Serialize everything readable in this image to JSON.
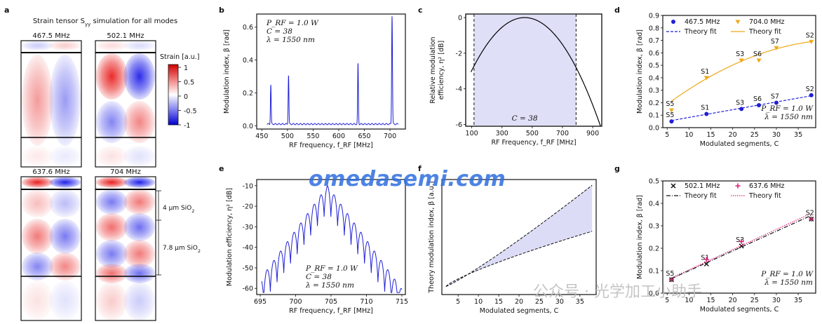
{
  "panel_letters": [
    "a",
    "b",
    "c",
    "d",
    "e",
    "f",
    "g"
  ],
  "panel_a": {
    "title": "Strain tensor S",
    "title_sub": "yy",
    "title_rest": " simulation for all modes",
    "modes": [
      "467.5 MHz",
      "502.1 MHz",
      "637.6 MHz",
      "704 MHz"
    ],
    "colorbar_label": "Strain [a.u.]",
    "colorbar_ticks": [
      "1",
      "0.5",
      "0",
      "-0.5",
      "-1"
    ],
    "layer1": "4 μm SiO",
    "layer1_sub": "2",
    "layer2": "7.8 μm SiO",
    "layer2_sub": "2"
  },
  "watermark": "omedasemi.com",
  "watermark2": "公众号 · 光学加工小助手",
  "chart_data": [
    {
      "panel": "b",
      "type": "line",
      "xlabel": "RF frequency, f_RF [MHz]",
      "ylabel": "Modulation index, β [rad]",
      "xlim": [
        440,
        730
      ],
      "ylim": [
        -0.02,
        0.68
      ],
      "xticks": [
        "450",
        "500",
        "550",
        "600",
        "650",
        "700"
      ],
      "yticks": [
        "0.0",
        "0.2",
        "0.4",
        "0.6"
      ],
      "annotations": [
        "P_RF = 1.0 W",
        "C = 38",
        "λ = 1550 nm"
      ],
      "series": [
        {
          "peaks": [
            [
              467.5,
              0.24
            ],
            [
              502.1,
              0.3
            ],
            [
              637.6,
              0.37
            ],
            [
              704.0,
              0.66
            ]
          ],
          "baseline": 0.01,
          "color": "#1f1fd6"
        }
      ]
    },
    {
      "panel": "c",
      "type": "line",
      "xlabel": "RF frequency, f_RF [MHz]",
      "ylabel": "Modulation efficiency, η² [dB]",
      "xlim": [
        694.5,
        715.5
      ],
      "ylim": [
        -63,
        -7
      ],
      "xticks": [
        "695",
        "700",
        "705",
        "710",
        "715"
      ],
      "yticks": [
        "-10",
        "-20",
        "-30",
        "-40",
        "-50",
        "-60"
      ],
      "annotations": [
        "P_RF = 1.0 W",
        "C = 38",
        "λ = 1550 nm"
      ],
      "series": [
        {
          "center": 704.5,
          "color": "#1f1fd6"
        }
      ]
    },
    {
      "panel": "d",
      "type": "line",
      "xlabel": "RF Frequency, f_RF [MHz]",
      "ylabel": "Relative modulation efficiency, η² [dB]",
      "ylabel_line1": "Relative modulation",
      "ylabel_line2": "efficiency, η² [dB]",
      "xlim": [
        60,
        960
      ],
      "ylim": [
        -6.1,
        0.2
      ],
      "xticks": [
        "100",
        "300",
        "500",
        "700",
        "900"
      ],
      "yticks": [
        "0",
        "-2",
        "-4",
        "-6"
      ],
      "band": [
        115,
        790
      ],
      "annotations": [
        "C = 38"
      ],
      "series": [
        {
          "peak": 450,
          "color": "#000000"
        }
      ]
    },
    {
      "panel": "e",
      "type": "area",
      "xlabel": "Modulated segments, C",
      "ylabel": "Theory modulation index, β [a.u.]",
      "xlim": [
        1,
        39
      ],
      "ylim": [
        0,
        1
      ],
      "xticks": [
        "5",
        "10",
        "15",
        "20",
        "25",
        "30",
        "35"
      ],
      "series": [
        {
          "name": "upper",
          "x": [
            2,
            38
          ],
          "y": [
            0.07,
            0.95
          ]
        },
        {
          "name": "lower",
          "x": [
            2,
            38
          ],
          "y": [
            0.07,
            0.55
          ]
        }
      ]
    },
    {
      "panel": "f",
      "type": "scatter",
      "xlabel": "Modulated segments, C",
      "ylabel": "Modulation index, β [rad]",
      "xlim": [
        4,
        39
      ],
      "ylim": [
        0,
        0.9
      ],
      "xticks": [
        "5",
        "10",
        "15",
        "20",
        "25",
        "30",
        "35"
      ],
      "yticks": [
        "0.0",
        "0.1",
        "0.2",
        "0.3",
        "0.4",
        "0.5",
        "0.6",
        "0.7",
        "0.8",
        "0.9"
      ],
      "legend": [
        "467.5 MHz",
        "704.0 MHz",
        "Theory fit",
        "Theory fit"
      ],
      "annotations": [
        "P_RF = 1.0 W",
        "λ = 1550 nm"
      ],
      "series": [
        {
          "name": "467.5 MHz",
          "x": [
            6,
            14,
            22,
            26,
            30,
            38
          ],
          "y": [
            0.05,
            0.11,
            0.15,
            0.18,
            0.2,
            0.26
          ],
          "labels": [
            "S5",
            "S1",
            "S3",
            "S6",
            "S7",
            "S2"
          ],
          "color": "#1f1fd6"
        },
        {
          "name": "704.0 MHz",
          "x": [
            6,
            14,
            22,
            26,
            30,
            38
          ],
          "y": [
            0.14,
            0.4,
            0.54,
            0.54,
            0.64,
            0.69
          ],
          "labels": [
            "S5",
            "S1",
            "S3",
            "S6",
            "S7",
            "S2"
          ],
          "color": "#f0a818"
        }
      ]
    },
    {
      "panel": "g",
      "type": "scatter",
      "xlabel": "Modulated segments, C",
      "ylabel": "Modulation index, β [rad]",
      "xlim": [
        4,
        39
      ],
      "ylim": [
        0,
        0.5
      ],
      "xticks": [
        "5",
        "10",
        "15",
        "20",
        "25",
        "30",
        "35"
      ],
      "yticks": [
        "0.0",
        "0.1",
        "0.2",
        "0.3",
        "0.4",
        "0.5"
      ],
      "legend": [
        "502.1 MHz",
        "637.6 MHz",
        "Theory fit",
        "Theory fit"
      ],
      "annotations": [
        "P_RF = 1.0 W",
        "λ = 1550 nm"
      ],
      "series": [
        {
          "name": "502.1 MHz",
          "x": [
            6,
            14,
            22,
            38
          ],
          "y": [
            0.06,
            0.13,
            0.21,
            0.33
          ],
          "labels": [
            "S5",
            "S1",
            "S3",
            "S2"
          ],
          "color": "#111111"
        },
        {
          "name": "637.6 MHz",
          "x": [
            6,
            14,
            22,
            38
          ],
          "y": [
            0.06,
            0.15,
            0.23,
            0.33
          ],
          "labels": [],
          "color": "#e0207a"
        }
      ]
    }
  ]
}
